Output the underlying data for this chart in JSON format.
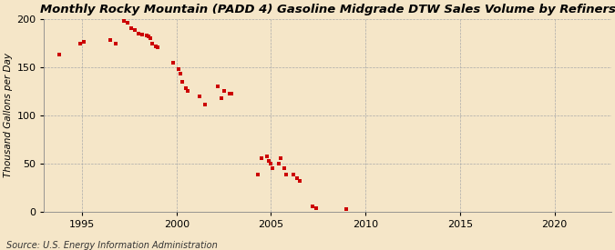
{
  "title": "Monthly Rocky Mountain (PADD 4) Gasoline Midgrade DTW Sales Volume by Refiners",
  "ylabel": "Thousand Gallons per Day",
  "source": "Source: U.S. Energy Information Administration",
  "background_color": "#f5e6c8",
  "plot_bg_color": "#f5e6c8",
  "marker_color": "#cc0000",
  "marker": "s",
  "marker_size": 3,
  "xlim": [
    1993,
    2023
  ],
  "ylim": [
    0,
    200
  ],
  "xticks": [
    1995,
    2000,
    2005,
    2010,
    2015,
    2020
  ],
  "yticks": [
    0,
    50,
    100,
    150,
    200
  ],
  "x": [
    1993.8,
    1994.9,
    1995.1,
    1996.5,
    1996.8,
    1997.2,
    1997.4,
    1997.6,
    1997.8,
    1998.0,
    1998.2,
    1998.4,
    1998.5,
    1998.6,
    1998.7,
    1998.9,
    1999.0,
    1999.8,
    2000.1,
    2000.2,
    2000.3,
    2000.5,
    2000.6,
    2001.2,
    2001.5,
    2002.2,
    2002.4,
    2002.5,
    2002.8,
    2002.9,
    2004.3,
    2004.5,
    2004.8,
    2004.9,
    2005.0,
    2005.1,
    2005.4,
    2005.5,
    2005.7,
    2005.8,
    2006.2,
    2006.4,
    2006.5,
    2007.2,
    2007.4,
    2009.0
  ],
  "y": [
    163,
    175,
    176,
    178,
    175,
    198,
    196,
    191,
    189,
    185,
    184,
    183,
    182,
    180,
    175,
    172,
    171,
    155,
    148,
    143,
    135,
    128,
    125,
    120,
    111,
    130,
    118,
    125,
    123,
    123,
    38,
    55,
    57,
    53,
    50,
    45,
    50,
    55,
    45,
    38,
    38,
    35,
    32,
    5,
    3,
    2
  ],
  "title_fontsize": 9.5,
  "ylabel_fontsize": 7.5,
  "tick_fontsize": 8,
  "source_fontsize": 7
}
